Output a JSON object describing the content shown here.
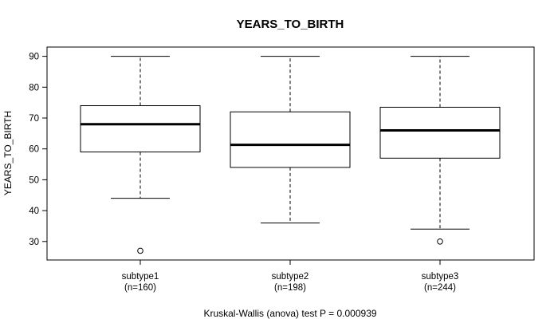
{
  "chart_data": {
    "type": "boxplot",
    "title": "YEARS_TO_BIRTH",
    "xlabel": "",
    "ylabel": "YEARS_TO_BIRTH",
    "ylim": [
      24,
      93
    ],
    "yticks": [
      30,
      40,
      50,
      60,
      70,
      80,
      90
    ],
    "yticks_labels": [
      "30",
      "40",
      "50",
      "60",
      "70",
      "80",
      "90"
    ],
    "grid": false,
    "categories": [
      "subtype1",
      "subtype2",
      "subtype3"
    ],
    "counts": [
      "(n=160)",
      "(n=198)",
      "(n=244)"
    ],
    "boxes": [
      {
        "name": "subtype1",
        "n_label": "(n=160)",
        "min": 44,
        "q1": 59,
        "median": 68,
        "q3": 74,
        "max": 90,
        "outliers": [
          27
        ]
      },
      {
        "name": "subtype2",
        "n_label": "(n=198)",
        "min": 36,
        "q1": 54,
        "median": 61.3,
        "q3": 72,
        "max": 90,
        "outliers": []
      },
      {
        "name": "subtype3",
        "n_label": "(n=244)",
        "min": 34,
        "q1": 57,
        "median": 66,
        "q3": 73.5,
        "max": 90,
        "outliers": [
          30
        ]
      }
    ],
    "footnote": "Kruskal-Wallis (anova) test P = 0.000939"
  }
}
